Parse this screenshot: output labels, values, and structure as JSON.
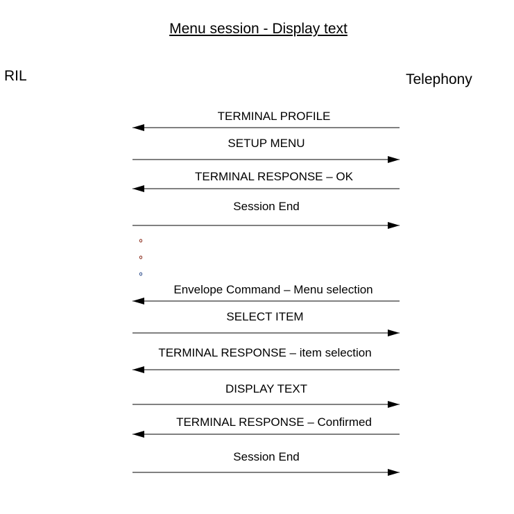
{
  "title": "Menu session - Display text",
  "participants": {
    "left": "RIL",
    "right": "Telephony"
  },
  "messages": [
    {
      "label": "TERMINAL PROFILE",
      "direction": "left"
    },
    {
      "label": "SETUP MENU",
      "direction": "right"
    },
    {
      "label": "TERMINAL RESPONSE – OK",
      "direction": "left"
    },
    {
      "label": "Session End",
      "direction": "right"
    },
    {
      "label": "Envelope Command – Menu selection",
      "direction": "left"
    },
    {
      "label": "SELECT ITEM",
      "direction": "right"
    },
    {
      "label": "TERMINAL RESPONSE – item selection",
      "direction": "left"
    },
    {
      "label": "DISPLAY TEXT",
      "direction": "right"
    },
    {
      "label": "TERMINAL RESPONSE – Confirmed",
      "direction": "left"
    },
    {
      "label": "Session End",
      "direction": "right"
    }
  ],
  "ellipsis_dots": 3
}
